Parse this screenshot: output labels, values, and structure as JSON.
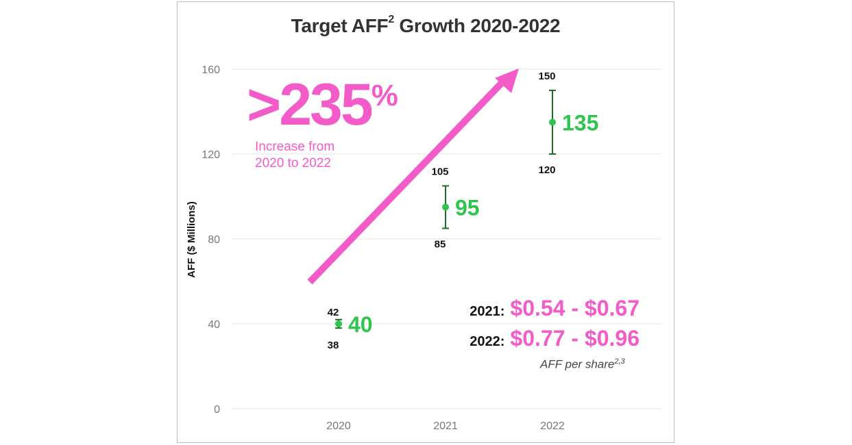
{
  "title": {
    "main": "Target AFF",
    "sup": "2",
    "rest": " Growth 2020-2022"
  },
  "colors": {
    "accent_pink": "#f35bc8",
    "midpoint_green": "#2fc44e",
    "range_bar": "#1e6b2a",
    "grid": "#e3e3e3",
    "axis_text": "#777777"
  },
  "chart_data": {
    "type": "errorbar",
    "title": "Target AFF² Growth 2020-2022",
    "xlabel": "",
    "ylabel": "AFF ($ Millions)",
    "ylim": [
      0,
      160
    ],
    "yticks": [
      0,
      40,
      80,
      120,
      160
    ],
    "grid": true,
    "categories": [
      "2020",
      "2021",
      "2022"
    ],
    "midpoints": [
      40,
      95,
      135
    ],
    "lows": [
      38,
      85,
      120
    ],
    "highs": [
      42,
      105,
      150
    ]
  },
  "growth": {
    "value": ">235",
    "unit": "%",
    "caption_line1": "Increase from",
    "caption_line2": "2020 to 2022"
  },
  "per_share": {
    "rows": [
      {
        "year": "2021:",
        "range": "$0.54 - $0.67"
      },
      {
        "year": "2022:",
        "range": "$0.77 - $0.96"
      }
    ],
    "note": "AFF  per share",
    "note_sup": "2,3"
  }
}
